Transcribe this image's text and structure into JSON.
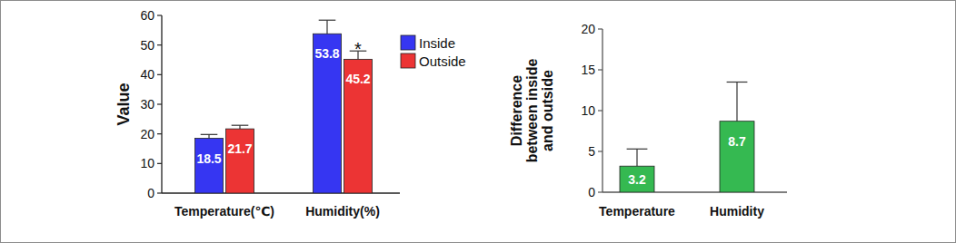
{
  "chart_data": [
    {
      "type": "bar",
      "ylabel": "Value",
      "categories": [
        "Temperature(℃)",
        "Humidity(%)"
      ],
      "series": [
        {
          "name": "Inside",
          "color": "#3636f2",
          "values": [
            18.5,
            53.8
          ],
          "errors": [
            1.3,
            4.6
          ]
        },
        {
          "name": "Outside",
          "color": "#ec3434",
          "values": [
            21.7,
            45.2
          ],
          "errors": [
            1.2,
            2.8
          ]
        }
      ],
      "ylim": [
        0,
        60
      ],
      "yticks": [
        0,
        10,
        20,
        30,
        40,
        50,
        60
      ],
      "legend": "upper right",
      "data_labels": true,
      "annotations": [
        {
          "text": "*",
          "series": 1,
          "category": 1
        }
      ]
    },
    {
      "type": "bar",
      "ylabel": [
        "Difference",
        "between inside",
        "and outside"
      ],
      "categories": [
        "Temperature",
        "Humidity"
      ],
      "values": [
        3.2,
        8.7
      ],
      "errors": [
        2.1,
        4.8
      ],
      "color": "#35b951",
      "ylim": [
        0,
        20
      ],
      "yticks": [
        0,
        5,
        10,
        15,
        20
      ],
      "data_labels": true
    }
  ]
}
